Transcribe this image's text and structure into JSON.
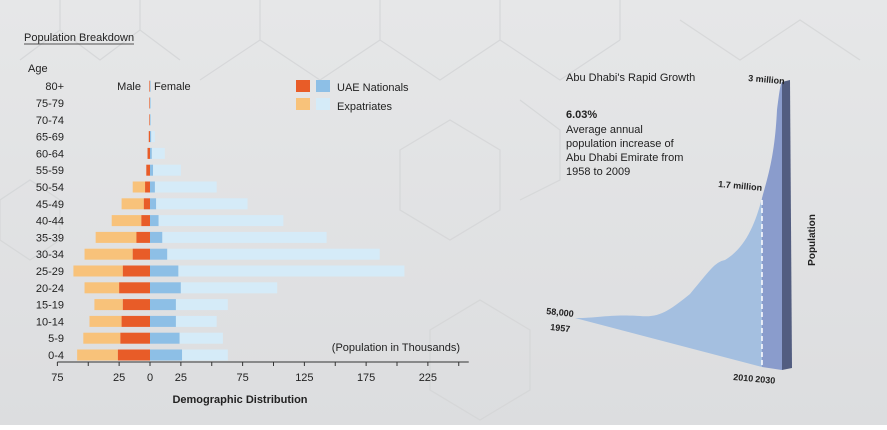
{
  "chart_data": [
    {
      "type": "bar",
      "subtype": "population-pyramid",
      "title": "Population Breakdown",
      "ylabel": "Age",
      "xlabel": "Demographic Distribution",
      "unit_note": "(Population in Thousands)",
      "side_labels": {
        "male": "Male",
        "female": "Female"
      },
      "legend": [
        {
          "label": "UAE Nationals",
          "male_color": "#e85c28",
          "female_color": "#8dbfe6"
        },
        {
          "label": "Expatriates",
          "male_color": "#f8c27a",
          "female_color": "#d5ebf8"
        }
      ],
      "legend_position": "top-right",
      "x_ticks_left": [
        "75",
        "25",
        "0"
      ],
      "x_ticks_right": [
        "25",
        "75",
        "125",
        "175",
        "225"
      ],
      "xlim": [
        -75,
        250
      ],
      "categories": [
        "0-4",
        "5-9",
        "10-14",
        "15-19",
        "20-24",
        "25-29",
        "30-34",
        "35-39",
        "40-44",
        "45-49",
        "50-54",
        "55-59",
        "60-64",
        "65-69",
        "70-74",
        "75-79",
        "80+"
      ],
      "series": [
        {
          "name": "Male UAE Nationals",
          "values": [
            26,
            24,
            23,
            22,
            25,
            22,
            14,
            11,
            7,
            5,
            4,
            3,
            2,
            1,
            0.5,
            0.5,
            0.5
          ]
        },
        {
          "name": "Male Expatriates",
          "values": [
            33,
            30,
            26,
            23,
            28,
            40,
            39,
            33,
            24,
            18,
            10,
            0,
            0,
            0,
            0,
            0,
            0
          ]
        },
        {
          "name": "Female UAE Nationals",
          "values": [
            26,
            24,
            21,
            21,
            25,
            23,
            14,
            10,
            7,
            5,
            4,
            2.5,
            1.5,
            1,
            0.5,
            0.5,
            0.5
          ]
        },
        {
          "name": "Female Expatriates",
          "values": [
            37,
            35,
            33,
            42,
            78,
            183,
            172,
            133,
            101,
            74,
            50,
            22.5,
            10.5,
            3,
            0.5,
            0.5,
            0
          ]
        }
      ]
    },
    {
      "type": "area",
      "title": "Abu Dhabi's Rapid Growth",
      "highlight_value": "6.03%",
      "highlight_text": [
        "Average annual",
        "population increase of",
        "Abu Dhabi Emirate from",
        "1958 to 2009"
      ],
      "ylabel": "Population",
      "points": [
        {
          "year": 1957,
          "population": 58000,
          "value_label": "58,000",
          "year_label": "1957"
        },
        {
          "year": 2010,
          "population": 1700000,
          "value_label": "1.7 million",
          "year_label": "2010"
        },
        {
          "year": 2030,
          "population": 3000000,
          "value_label": "3 million",
          "year_label": "2030"
        }
      ],
      "colors": {
        "historic": "#a4bfe0",
        "projected": "#8a9ccc",
        "edge": "#525d80"
      }
    }
  ]
}
